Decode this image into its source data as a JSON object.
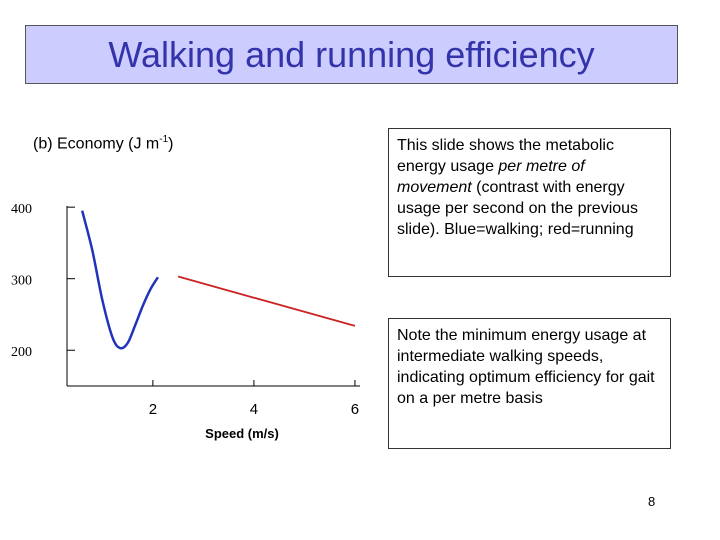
{
  "slide": {
    "title": "Walking and running efficiency",
    "subtitle_text": "(b) Economy (J m",
    "subtitle_sup": "-1",
    "subtitle_end": ")",
    "page_number": "8"
  },
  "note1": {
    "part1": "This slide shows the metabolic energy usage ",
    "italic": "per metre of movement",
    "part2": " (contrast with energy usage per second on the previous slide). Blue=walking; red=running"
  },
  "note2": {
    "text": "Note the minimum energy usage at intermediate walking speeds, indicating optimum efficiency for gait on a per metre basis"
  },
  "chart_data": {
    "type": "line",
    "title": "",
    "xlabel": "Speed (m/s)",
    "ylabel": "",
    "xlim": [
      0.3,
      6.1
    ],
    "ylim": [
      150,
      410
    ],
    "x_ticks": [
      2,
      4,
      6
    ],
    "y_ticks": [
      200,
      300,
      400
    ],
    "grid": false,
    "series": [
      {
        "color": "#2233bb",
        "x": [
          0.6,
          0.8,
          1.0,
          1.2,
          1.35,
          1.5,
          1.65,
          1.8,
          1.95,
          2.1
        ],
        "y": [
          395,
          340,
          270,
          218,
          203,
          210,
          235,
          262,
          285,
          302
        ]
      },
      {
        "color": "#cc2222",
        "x": [
          2.5,
          6.0
        ],
        "y": [
          303,
          234
        ]
      }
    ]
  }
}
